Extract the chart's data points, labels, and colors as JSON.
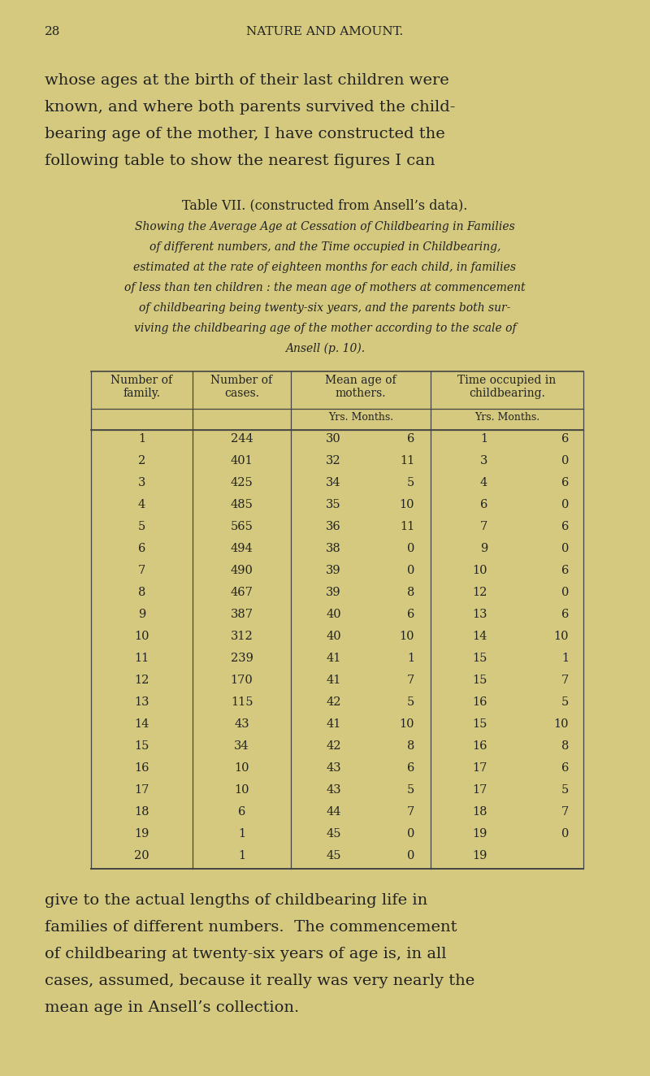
{
  "bg_color": "#d4c97e",
  "page_number": "28",
  "header_title": "NATURE AND AMOUNT.",
  "para1_lines": [
    "whose ages at the birth of their last children were",
    "known, and where both parents survived the child-",
    "bearing age of the mother, I have constructed the",
    "following table to show the nearest figures I can"
  ],
  "table_title": "Table VII. (constructed from Ansell’s data).",
  "subtitle_lines": [
    "Showing the Average Age at Cessation of Childbearing in Families",
    "of different numbers, and the Time occupied in Childbearing,",
    "estimated at the rate of eighteen months for each child, in families",
    "of less than ten children : the mean age of mothers at commencement",
    "of childbearing being twenty-six years, and the parents both sur-",
    "viving the childbearing age of the mother according to the scale of",
    "Ansell (p. 10)."
  ],
  "col_header1": "Number of\nfamily.",
  "col_header2": "Number of\ncases.",
  "col_header3": "Mean age of\nmothers.",
  "col_header4": "Time occupied in\nchildbearing.",
  "subheader": "Yrs. Months.",
  "rows": [
    [
      1,
      244,
      30,
      6,
      1,
      6
    ],
    [
      2,
      401,
      32,
      11,
      3,
      0
    ],
    [
      3,
      425,
      34,
      5,
      4,
      6
    ],
    [
      4,
      485,
      35,
      10,
      6,
      0
    ],
    [
      5,
      565,
      36,
      11,
      7,
      6
    ],
    [
      6,
      494,
      38,
      0,
      9,
      0
    ],
    [
      7,
      490,
      39,
      0,
      10,
      6
    ],
    [
      8,
      467,
      39,
      8,
      12,
      0
    ],
    [
      9,
      387,
      40,
      6,
      13,
      6
    ],
    [
      10,
      312,
      40,
      10,
      14,
      10
    ],
    [
      11,
      239,
      41,
      1,
      15,
      1
    ],
    [
      12,
      170,
      41,
      7,
      15,
      7
    ],
    [
      13,
      115,
      42,
      5,
      16,
      5
    ],
    [
      14,
      43,
      41,
      10,
      15,
      10
    ],
    [
      15,
      34,
      42,
      8,
      16,
      8
    ],
    [
      16,
      10,
      43,
      6,
      17,
      6
    ],
    [
      17,
      10,
      43,
      5,
      17,
      5
    ],
    [
      18,
      6,
      44,
      7,
      18,
      7
    ],
    [
      19,
      1,
      45,
      0,
      19,
      0
    ],
    [
      20,
      1,
      45,
      0,
      19,
      null
    ]
  ],
  "para2_lines": [
    "give to the actual lengths of childbearing life in",
    "families of different numbers.  The commencement",
    "of childbearing at twenty-six years of age is, in all",
    "cases, assumed, because it really was very nearly the",
    "mean age in Ansell’s collection."
  ],
  "text_color": "#222222",
  "line_color": "#444444"
}
